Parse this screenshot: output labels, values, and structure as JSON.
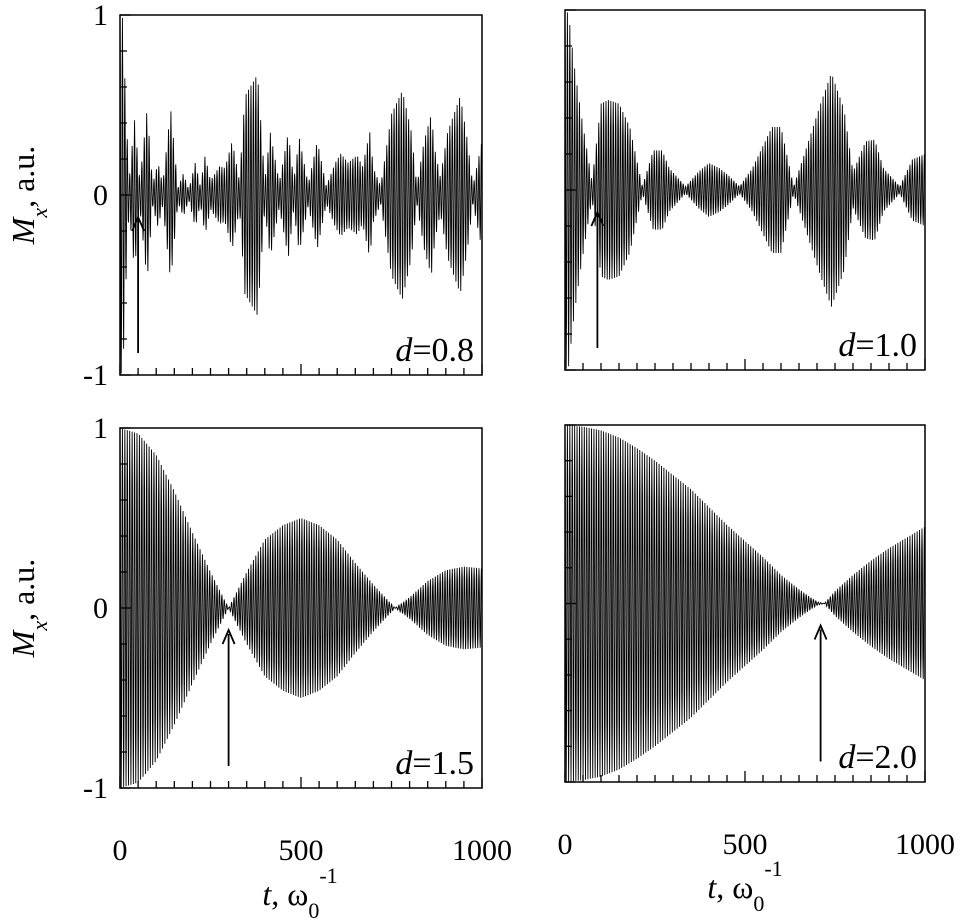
{
  "ylabel": {
    "var": "M",
    "sub": "x",
    "unit": ", a.u."
  },
  "xlabel": {
    "var": "t",
    "unit_a": ", ω",
    "unit_sub": "0",
    "unit_sup": "-1"
  },
  "chart_data": [
    {
      "type": "line",
      "label_var": "d",
      "label_val": "=0.8",
      "xlim": [
        0,
        1000
      ],
      "ylim": [
        -1,
        1
      ],
      "y_ticks": [
        "1",
        "0",
        "-1"
      ],
      "x_ticks": [],
      "show_ytick_labels": true,
      "show_xtick_labels": false,
      "carrier_period": 6.7,
      "envelope": [
        [
          0,
          1.0
        ],
        [
          8,
          0.98
        ],
        [
          15,
          0.55
        ],
        [
          25,
          0.08
        ],
        [
          40,
          0.42
        ],
        [
          55,
          0.08
        ],
        [
          75,
          0.48
        ],
        [
          90,
          0.06
        ],
        [
          105,
          0.18
        ],
        [
          118,
          0.06
        ],
        [
          140,
          0.48
        ],
        [
          160,
          0.04
        ],
        [
          175,
          0.12
        ],
        [
          190,
          0.03
        ],
        [
          208,
          0.18
        ],
        [
          222,
          0.05
        ],
        [
          235,
          0.22
        ],
        [
          250,
          0.08
        ],
        [
          275,
          0.16
        ],
        [
          290,
          0.15
        ],
        [
          310,
          0.3
        ],
        [
          330,
          0.08
        ],
        [
          345,
          0.55
        ],
        [
          380,
          0.67
        ],
        [
          400,
          0.08
        ],
        [
          415,
          0.35
        ],
        [
          440,
          0.07
        ],
        [
          465,
          0.35
        ],
        [
          480,
          0.08
        ],
        [
          495,
          0.32
        ],
        [
          520,
          0.06
        ],
        [
          545,
          0.3
        ],
        [
          570,
          0.05
        ],
        [
          595,
          0.18
        ],
        [
          610,
          0.23
        ],
        [
          630,
          0.18
        ],
        [
          655,
          0.22
        ],
        [
          670,
          0.16
        ],
        [
          690,
          0.35
        ],
        [
          700,
          0.15
        ],
        [
          720,
          0.05
        ],
        [
          750,
          0.45
        ],
        [
          780,
          0.58
        ],
        [
          805,
          0.35
        ],
        [
          820,
          0.05
        ],
        [
          840,
          0.3
        ],
        [
          860,
          0.45
        ],
        [
          870,
          0.25
        ],
        [
          885,
          0.1
        ],
        [
          905,
          0.35
        ],
        [
          940,
          0.55
        ],
        [
          960,
          0.3
        ],
        [
          975,
          0.05
        ],
        [
          1000,
          0.3
        ]
      ],
      "arrow_t": 50
    },
    {
      "type": "line",
      "label_var": "d",
      "label_val": "=1.0",
      "xlim": [
        0,
        1000
      ],
      "ylim": [
        -1,
        1
      ],
      "y_ticks": [],
      "x_ticks": [],
      "show_ytick_labels": false,
      "show_xtick_labels": false,
      "carrier_period": 6.7,
      "envelope": [
        [
          0,
          1.0
        ],
        [
          10,
          0.98
        ],
        [
          25,
          0.7
        ],
        [
          45,
          0.42
        ],
        [
          75,
          0.05
        ],
        [
          100,
          0.48
        ],
        [
          120,
          0.5
        ],
        [
          150,
          0.48
        ],
        [
          180,
          0.35
        ],
        [
          215,
          0.02
        ],
        [
          245,
          0.22
        ],
        [
          270,
          0.22
        ],
        [
          290,
          0.12
        ],
        [
          335,
          0.02
        ],
        [
          370,
          0.1
        ],
        [
          400,
          0.15
        ],
        [
          430,
          0.12
        ],
        [
          455,
          0.08
        ],
        [
          485,
          0.02
        ],
        [
          520,
          0.12
        ],
        [
          575,
          0.35
        ],
        [
          600,
          0.35
        ],
        [
          635,
          0.02
        ],
        [
          665,
          0.2
        ],
        [
          710,
          0.48
        ],
        [
          740,
          0.65
        ],
        [
          775,
          0.45
        ],
        [
          800,
          0.1
        ],
        [
          835,
          0.27
        ],
        [
          860,
          0.28
        ],
        [
          885,
          0.12
        ],
        [
          930,
          0.02
        ],
        [
          965,
          0.17
        ],
        [
          1000,
          0.2
        ]
      ],
      "arrow_t": 90
    },
    {
      "type": "line",
      "label_var": "d",
      "label_val": "=1.5",
      "xlim": [
        0,
        1000
      ],
      "ylim": [
        -1,
        1
      ],
      "y_ticks": [
        "1",
        "0",
        "-1"
      ],
      "x_ticks": [
        "0",
        "500",
        "1000"
      ],
      "show_ytick_labels": true,
      "show_xtick_labels": true,
      "carrier_period": 6.7,
      "envelope": [
        [
          0,
          1.0
        ],
        [
          50,
          0.97
        ],
        [
          100,
          0.85
        ],
        [
          150,
          0.65
        ],
        [
          200,
          0.42
        ],
        [
          250,
          0.2
        ],
        [
          300,
          0.0
        ],
        [
          350,
          0.2
        ],
        [
          400,
          0.38
        ],
        [
          450,
          0.46
        ],
        [
          500,
          0.5
        ],
        [
          550,
          0.46
        ],
        [
          600,
          0.38
        ],
        [
          650,
          0.25
        ],
        [
          700,
          0.13
        ],
        [
          760,
          0.0
        ],
        [
          800,
          0.06
        ],
        [
          850,
          0.15
        ],
        [
          900,
          0.21
        ],
        [
          950,
          0.23
        ],
        [
          1000,
          0.22
        ]
      ],
      "arrow_t": 300
    },
    {
      "type": "line",
      "label_var": "d",
      "label_val": "=2.0",
      "xlim": [
        0,
        1000
      ],
      "ylim": [
        -1,
        1
      ],
      "y_ticks": [],
      "x_ticks": [
        "0",
        "500",
        "1000"
      ],
      "show_ytick_labels": false,
      "show_xtick_labels": true,
      "carrier_period": 6.7,
      "envelope": [
        [
          0,
          1.0
        ],
        [
          50,
          0.99
        ],
        [
          100,
          0.97
        ],
        [
          150,
          0.93
        ],
        [
          200,
          0.87
        ],
        [
          250,
          0.8
        ],
        [
          300,
          0.72
        ],
        [
          350,
          0.64
        ],
        [
          400,
          0.54
        ],
        [
          450,
          0.44
        ],
        [
          500,
          0.35
        ],
        [
          550,
          0.26
        ],
        [
          600,
          0.16
        ],
        [
          650,
          0.08
        ],
        [
          700,
          0.01
        ],
        [
          720,
          0.0
        ],
        [
          750,
          0.07
        ],
        [
          800,
          0.16
        ],
        [
          850,
          0.24
        ],
        [
          900,
          0.31
        ],
        [
          950,
          0.37
        ],
        [
          1000,
          0.43
        ]
      ],
      "arrow_t": 710
    }
  ]
}
